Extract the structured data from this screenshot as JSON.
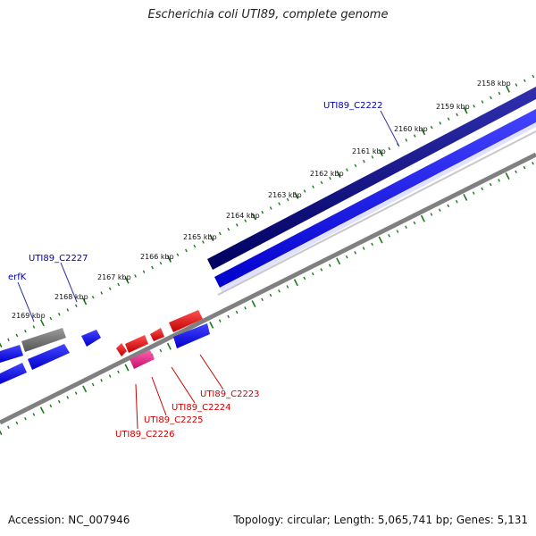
{
  "title": "Escherichia coli UTI89, complete genome",
  "footer": {
    "accession": "Accession: NC_007946",
    "summary": "Topology: circular; Length: 5,065,741 bp; Genes: 5,131"
  },
  "colors": {
    "tick": "#1a7a1a",
    "backbone": "#808080",
    "forward_gene": "#0000ee",
    "forward_gene_dark": "#000080",
    "reverse_gene": "#ee0000",
    "pink_gene": "#e0208a",
    "grey_gene": "#707070",
    "label_blue": "#0000aa",
    "label_red": "#cc0000"
  },
  "ticks": [
    {
      "label": "2158 kbp"
    },
    {
      "label": "2159 kbp"
    },
    {
      "label": "2160 kbp"
    },
    {
      "label": "2161 kbp"
    },
    {
      "label": "2162 kbp"
    },
    {
      "label": "2163 kbp"
    },
    {
      "label": "2164 kbp"
    },
    {
      "label": "2165 kbp"
    },
    {
      "label": "2166 kbp"
    },
    {
      "label": "2167 kbp"
    },
    {
      "label": "2168 kbp"
    },
    {
      "label": "2169 kbp"
    }
  ],
  "gene_labels": [
    {
      "name": "UTI89_C2222",
      "strand": "forward"
    },
    {
      "name": "UTI89_C2227",
      "strand": "forward"
    },
    {
      "name": "erfK",
      "strand": "forward"
    },
    {
      "name": "UTI89_C2223",
      "strand": "reverse"
    },
    {
      "name": "UTI89_C2224",
      "strand": "reverse"
    },
    {
      "name": "UTI89_C2225",
      "strand": "reverse"
    },
    {
      "name": "UTI89_C2226",
      "strand": "reverse"
    }
  ]
}
